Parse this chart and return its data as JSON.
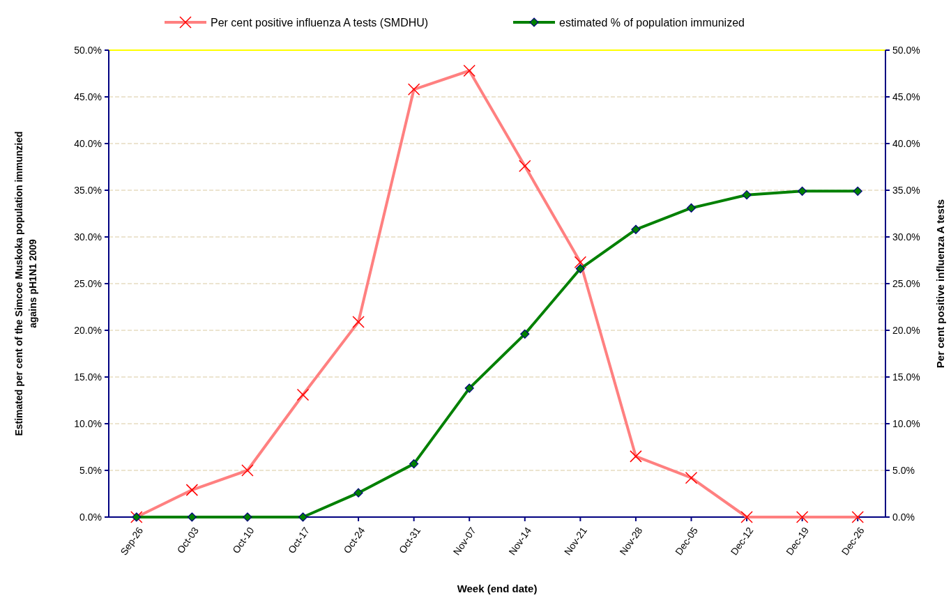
{
  "chart_data": {
    "type": "line",
    "xlabel": "Week (end date)",
    "ylabel": "Estimated per cent of the Simcoe Muskoka population immunzied agains pH1N1 2009",
    "y2label": "Per cent positive influenza A tests",
    "categories": [
      "Sep-26",
      "Oct-03",
      "Oct-10",
      "Oct-17",
      "Oct-24",
      "Oct-31",
      "Nov-07",
      "Nov-14",
      "Nov-21",
      "Nov-28",
      "Dec-05",
      "Dec-12",
      "Dec-19",
      "Dec-26"
    ],
    "series": [
      {
        "name": "Per cent positive influenza A tests (SMDHU)",
        "color": "#ff8080",
        "marker": "cross",
        "values": [
          0,
          2.9,
          5.0,
          13.1,
          20.9,
          45.8,
          47.8,
          37.6,
          27.3,
          6.5,
          4.2,
          0,
          0,
          0
        ]
      },
      {
        "name": "estimated % of population immunized",
        "color": "#008000",
        "marker": "diamond",
        "values": [
          0,
          0,
          0,
          0,
          2.6,
          5.7,
          13.8,
          19.6,
          26.6,
          30.8,
          33.1,
          34.5,
          34.9,
          34.9
        ]
      }
    ],
    "ylim": [
      0,
      50
    ],
    "yticks": [
      {
        "value": 0,
        "label": "0.0%"
      },
      {
        "value": 5,
        "label": "5.0%"
      },
      {
        "value": 10,
        "label": "10.0%"
      },
      {
        "value": 15,
        "label": "15.0%"
      },
      {
        "value": 20,
        "label": "20.0%"
      },
      {
        "value": 25,
        "label": "25.0%"
      },
      {
        "value": 30,
        "label": "30.0%"
      },
      {
        "value": 35,
        "label": "35.0%"
      },
      {
        "value": 40,
        "label": "40.0%"
      },
      {
        "value": 45,
        "label": "45.0%"
      },
      {
        "value": 50,
        "label": "50.0%"
      }
    ],
    "y2lim": [
      0,
      50
    ],
    "y2ticks": [
      {
        "value": 0,
        "label": "0.0%"
      },
      {
        "value": 5,
        "label": "5.0%"
      },
      {
        "value": 10,
        "label": "10.0%"
      },
      {
        "value": 15,
        "label": "15.0%"
      },
      {
        "value": 20,
        "label": "20.0%"
      },
      {
        "value": 25,
        "label": "25.0%"
      },
      {
        "value": 30,
        "label": "30.0%"
      },
      {
        "value": 35,
        "label": "35.0%"
      },
      {
        "value": 40,
        "label": "40.0%"
      },
      {
        "value": 45,
        "label": "45.0%"
      },
      {
        "value": 50,
        "label": "50.0%"
      }
    ],
    "grid": "y",
    "legend": "top"
  }
}
